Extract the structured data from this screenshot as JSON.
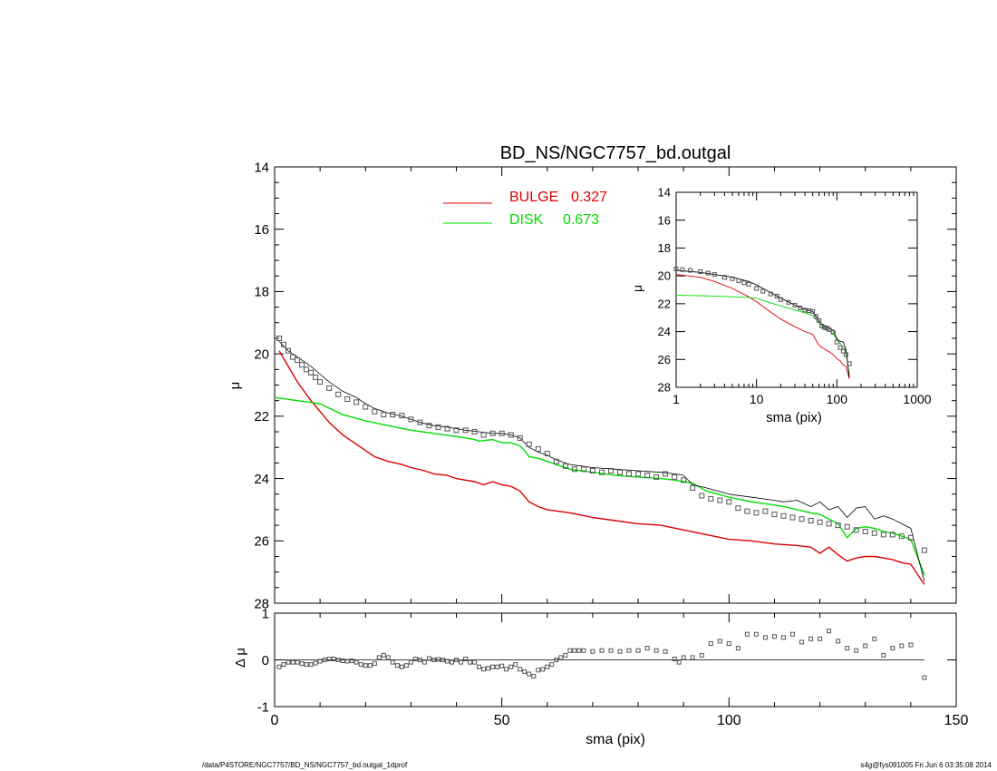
{
  "figure": {
    "title": "BD_NS/NGC7757_bd.outgal",
    "footer_left": "/data/P4STORE/NGC7757/BD_NS/NGC7757_bd.outgal_1dprof",
    "footer_right": "s4g@fys091005  Fri Jun  6 03:35:08 2014"
  },
  "colors": {
    "data": "#555555",
    "total": "#000000",
    "bulge": "#dd0000",
    "disk": "#00dd00",
    "axis": "#000000"
  },
  "chart_data": [
    {
      "id": "main",
      "type": "line",
      "title": "BD_NS/NGC7757_bd.outgal",
      "xlabel": "",
      "ylabel": "μ",
      "xlim": [
        0,
        150
      ],
      "ylim": [
        28,
        14
      ],
      "y_inverted": true,
      "yticks": [
        14,
        16,
        18,
        20,
        22,
        24,
        26,
        28
      ],
      "legend": {
        "placement": "top-center",
        "entries": [
          {
            "label": "BULGE",
            "value": "0.327",
            "color": "#dd0000"
          },
          {
            "label": "DISK",
            "value": "0.673",
            "color": "#00dd00"
          }
        ]
      },
      "series": [
        {
          "key": "data",
          "style": "squares",
          "color": "#555555",
          "x": [
            1,
            2,
            3,
            4,
            5,
            6,
            7,
            8,
            9,
            10,
            12,
            14,
            16,
            18,
            20,
            22,
            24,
            26,
            28,
            30,
            32,
            34,
            36,
            38,
            40,
            42,
            44,
            46,
            48,
            50,
            52,
            54,
            56,
            58,
            60,
            62,
            64,
            66,
            68,
            70,
            72,
            74,
            76,
            78,
            80,
            82,
            84,
            86,
            88,
            90,
            92,
            94,
            96,
            98,
            100,
            102,
            104,
            106,
            108,
            110,
            112,
            114,
            116,
            118,
            120,
            122,
            124,
            126,
            128,
            130,
            132,
            134,
            136,
            138,
            140,
            143
          ],
          "y": [
            19.5,
            19.7,
            19.9,
            20.1,
            20.2,
            20.35,
            20.5,
            20.6,
            20.75,
            20.9,
            21.1,
            21.3,
            21.45,
            21.55,
            21.7,
            21.85,
            21.95,
            21.95,
            21.98,
            22.1,
            22.2,
            22.3,
            22.35,
            22.4,
            22.45,
            22.45,
            22.5,
            22.6,
            22.55,
            22.55,
            22.6,
            22.7,
            22.9,
            23.05,
            23.2,
            23.45,
            23.6,
            23.7,
            23.7,
            23.75,
            23.8,
            23.75,
            23.8,
            23.85,
            23.85,
            23.9,
            23.95,
            23.85,
            23.95,
            24.05,
            24.3,
            24.55,
            24.65,
            24.7,
            24.75,
            24.95,
            25.05,
            25.1,
            25.05,
            25.15,
            25.2,
            25.25,
            25.3,
            25.35,
            25.4,
            25.45,
            25.5,
            25.55,
            25.65,
            25.7,
            25.75,
            25.8,
            25.8,
            25.85,
            25.9,
            26.3
          ]
        },
        {
          "key": "total",
          "style": "line",
          "color": "#000000",
          "x": [
            1,
            3,
            5,
            8,
            10,
            12,
            15,
            18,
            20,
            22,
            25,
            28,
            30,
            32,
            35,
            38,
            40,
            42,
            45,
            48,
            50,
            52,
            54,
            55,
            56,
            58,
            60,
            62,
            65,
            70,
            75,
            80,
            85,
            88,
            90,
            92,
            95,
            100,
            105,
            110,
            112,
            115,
            118,
            120,
            122,
            124,
            126,
            128,
            130,
            132,
            134,
            136,
            138,
            140,
            143
          ],
          "y": [
            19.6,
            19.9,
            20.1,
            20.4,
            20.65,
            20.9,
            21.2,
            21.4,
            21.6,
            21.75,
            21.9,
            22.0,
            22.1,
            22.2,
            22.3,
            22.35,
            22.4,
            22.45,
            22.5,
            22.55,
            22.55,
            22.6,
            22.7,
            22.85,
            23.0,
            23.15,
            23.25,
            23.4,
            23.55,
            23.65,
            23.7,
            23.75,
            23.8,
            23.85,
            23.9,
            24.2,
            24.3,
            24.5,
            24.6,
            24.7,
            24.75,
            24.7,
            24.9,
            24.75,
            25.0,
            24.9,
            25.25,
            24.95,
            24.9,
            25.3,
            25.2,
            25.3,
            25.45,
            25.6,
            27.3
          ]
        },
        {
          "key": "bulge",
          "style": "line",
          "color": "#dd0000",
          "x": [
            1,
            3,
            5,
            8,
            10,
            12,
            15,
            18,
            20,
            22,
            25,
            28,
            30,
            33,
            35,
            38,
            40,
            42,
            44,
            46,
            48,
            50,
            52,
            54,
            56,
            58,
            60,
            65,
            70,
            75,
            80,
            85,
            90,
            95,
            100,
            105,
            110,
            115,
            118,
            120,
            122,
            124,
            126,
            128,
            130,
            132,
            134,
            136,
            138,
            140,
            143
          ],
          "y": [
            19.9,
            20.4,
            20.9,
            21.5,
            21.85,
            22.2,
            22.6,
            22.9,
            23.1,
            23.3,
            23.45,
            23.55,
            23.65,
            23.75,
            23.85,
            23.9,
            24.0,
            24.05,
            24.1,
            24.2,
            24.1,
            24.2,
            24.25,
            24.4,
            24.75,
            24.9,
            25.0,
            25.1,
            25.25,
            25.35,
            25.45,
            25.5,
            25.65,
            25.8,
            25.95,
            26.0,
            26.1,
            26.15,
            26.2,
            26.4,
            26.2,
            26.45,
            26.65,
            26.55,
            26.5,
            26.5,
            26.55,
            26.6,
            26.7,
            26.75,
            27.4
          ]
        },
        {
          "key": "disk",
          "style": "line",
          "color": "#00dd00",
          "x": [
            0,
            5,
            10,
            15,
            20,
            25,
            30,
            35,
            40,
            44,
            45,
            48,
            50,
            52,
            54,
            55,
            56,
            58,
            60,
            62,
            65,
            70,
            75,
            80,
            85,
            88,
            90,
            92,
            95,
            100,
            105,
            110,
            112,
            115,
            118,
            120,
            122,
            124,
            126,
            128,
            130,
            132,
            134,
            136,
            138,
            140,
            143
          ],
          "y": [
            21.4,
            21.5,
            21.6,
            21.95,
            22.15,
            22.3,
            22.45,
            22.55,
            22.65,
            22.75,
            22.8,
            22.75,
            22.85,
            22.85,
            22.95,
            23.1,
            23.3,
            23.35,
            23.45,
            23.55,
            23.7,
            23.8,
            23.9,
            23.95,
            24.0,
            24.05,
            24.1,
            24.15,
            24.4,
            24.6,
            24.75,
            24.85,
            24.9,
            25.0,
            25.1,
            25.15,
            25.3,
            25.45,
            25.9,
            25.6,
            25.55,
            25.6,
            25.7,
            25.75,
            25.85,
            25.95,
            27.1
          ]
        }
      ]
    },
    {
      "id": "residual",
      "type": "scatter",
      "xlabel": "sma (pix)",
      "ylabel": "Δ μ",
      "xlim": [
        0,
        150
      ],
      "ylim": [
        -1,
        1
      ],
      "xticks": [
        0,
        50,
        100,
        150
      ],
      "yticks": [
        -1,
        0,
        1
      ],
      "zero_line_xmax": 143,
      "series": [
        {
          "key": "residual",
          "style": "squares",
          "color": "#555555",
          "x": [
            1,
            2,
            3,
            4,
            5,
            6,
            7,
            8,
            9,
            10,
            11,
            12,
            13,
            14,
            15,
            16,
            17,
            18,
            19,
            20,
            21,
            22,
            23,
            24,
            25,
            26,
            27,
            28,
            29,
            30,
            31,
            32,
            33,
            34,
            35,
            36,
            37,
            38,
            39,
            40,
            41,
            42,
            43,
            44,
            45,
            46,
            47,
            48,
            49,
            50,
            51,
            52,
            53,
            54,
            55,
            56,
            57,
            58,
            59,
            60,
            61,
            62,
            63,
            64,
            65,
            66,
            67,
            68,
            70,
            72,
            74,
            76,
            78,
            80,
            82,
            84,
            86,
            88,
            89,
            90,
            92,
            94,
            96,
            98,
            100,
            102,
            104,
            106,
            108,
            110,
            112,
            114,
            116,
            118,
            120,
            122,
            124,
            126,
            128,
            130,
            132,
            134,
            136,
            138,
            140,
            143
          ],
          "y": [
            -0.15,
            -0.1,
            -0.05,
            -0.05,
            -0.05,
            -0.08,
            -0.1,
            -0.1,
            -0.07,
            -0.03,
            0.0,
            0.02,
            0.02,
            0.0,
            -0.02,
            -0.03,
            -0.02,
            -0.05,
            -0.1,
            -0.12,
            -0.12,
            -0.08,
            0.05,
            0.1,
            0.05,
            -0.05,
            -0.12,
            -0.15,
            -0.12,
            -0.05,
            0.02,
            0.0,
            -0.05,
            0.03,
            0.0,
            0.01,
            0.0,
            -0.03,
            -0.05,
            0.0,
            -0.05,
            0.02,
            -0.05,
            -0.05,
            -0.15,
            -0.2,
            -0.18,
            -0.15,
            -0.15,
            -0.13,
            -0.2,
            -0.15,
            -0.1,
            -0.2,
            -0.25,
            -0.3,
            -0.35,
            -0.22,
            -0.2,
            -0.15,
            -0.1,
            0.0,
            0.05,
            0.1,
            0.2,
            0.2,
            0.2,
            0.2,
            0.18,
            0.2,
            0.2,
            0.18,
            0.2,
            0.2,
            0.25,
            0.2,
            0.18,
            0.02,
            -0.05,
            0.05,
            0.05,
            0.1,
            0.35,
            0.4,
            0.35,
            0.25,
            0.55,
            0.55,
            0.48,
            0.5,
            0.48,
            0.55,
            0.38,
            0.45,
            0.45,
            0.62,
            0.4,
            0.25,
            0.2,
            0.3,
            0.45,
            0.1,
            0.25,
            0.3,
            0.32,
            -0.38
          ]
        }
      ]
    },
    {
      "id": "inset",
      "type": "line",
      "xlabel": "sma (pix)",
      "ylabel": "μ",
      "x_scale": "log",
      "xlim": [
        1,
        1000
      ],
      "ylim": [
        28,
        14
      ],
      "y_inverted": true,
      "xticks": [
        1,
        10,
        100,
        1000
      ],
      "yticks": [
        14,
        16,
        18,
        20,
        22,
        24,
        26,
        28
      ],
      "series": [
        {
          "key": "data",
          "style": "squares",
          "color": "#555555",
          "x": [
            1,
            1.2,
            1.5,
            2,
            2.5,
            3,
            4,
            5,
            6,
            7,
            8,
            10,
            12,
            15,
            18,
            20,
            25,
            30,
            35,
            40,
            45,
            50,
            55,
            60,
            65,
            70,
            75,
            80,
            90,
            100,
            110,
            120,
            130,
            143
          ],
          "y": [
            19.5,
            19.55,
            19.6,
            19.7,
            19.8,
            19.9,
            20.1,
            20.2,
            20.35,
            20.5,
            20.6,
            20.9,
            21.1,
            21.3,
            21.45,
            21.7,
            21.9,
            22.1,
            22.3,
            22.45,
            22.5,
            22.55,
            22.9,
            23.2,
            23.6,
            23.7,
            23.75,
            23.85,
            24.05,
            24.75,
            25.15,
            25.4,
            25.65,
            26.3
          ]
        },
        {
          "key": "total",
          "style": "line",
          "color": "#000000",
          "x": [
            1,
            2,
            3,
            5,
            8,
            10,
            15,
            20,
            30,
            40,
            50,
            60,
            70,
            80,
            90,
            100,
            110,
            120,
            130,
            143
          ],
          "y": [
            19.6,
            19.75,
            19.9,
            20.1,
            20.4,
            20.65,
            21.2,
            21.6,
            22.1,
            22.4,
            22.55,
            23.25,
            23.65,
            23.75,
            23.9,
            24.5,
            24.7,
            24.75,
            25.3,
            27.3
          ]
        },
        {
          "key": "bulge",
          "style": "line",
          "color": "#dd0000",
          "x": [
            1,
            2,
            3,
            5,
            8,
            10,
            15,
            20,
            30,
            40,
            50,
            60,
            70,
            80,
            90,
            100,
            110,
            120,
            130,
            143
          ],
          "y": [
            19.9,
            20.1,
            20.4,
            20.9,
            21.5,
            21.85,
            22.6,
            23.1,
            23.65,
            24.0,
            24.2,
            25.0,
            25.25,
            25.45,
            25.65,
            25.95,
            26.1,
            26.4,
            26.5,
            27.4
          ]
        },
        {
          "key": "disk",
          "style": "line",
          "color": "#00dd00",
          "x": [
            1,
            2,
            3,
            5,
            8,
            10,
            15,
            20,
            30,
            40,
            50,
            60,
            70,
            80,
            90,
            100,
            110,
            120,
            130,
            143
          ],
          "y": [
            21.4,
            21.42,
            21.45,
            21.5,
            21.55,
            21.6,
            21.95,
            22.15,
            22.45,
            22.65,
            22.85,
            23.45,
            23.8,
            23.95,
            24.1,
            24.6,
            24.85,
            25.15,
            25.55,
            27.1
          ]
        }
      ]
    }
  ]
}
